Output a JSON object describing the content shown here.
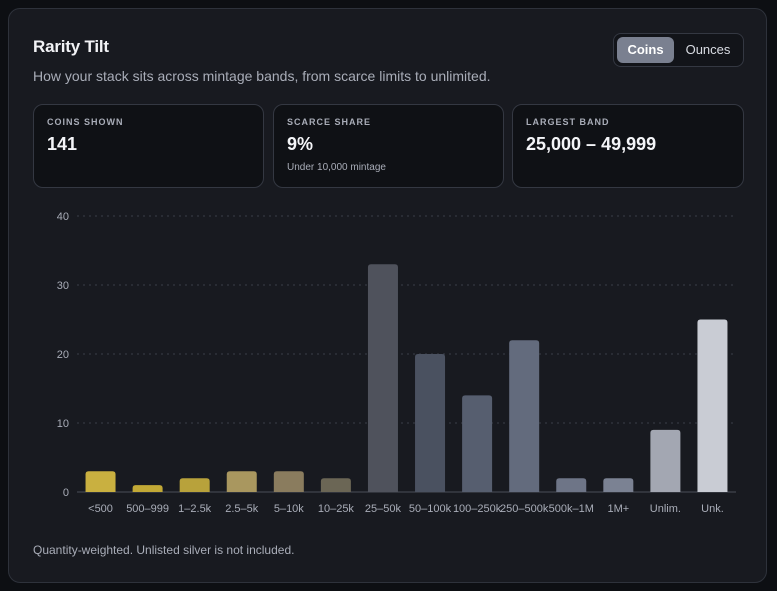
{
  "header": {
    "title": "Rarity Tilt",
    "subtitle": "How your stack sits across mintage bands, from scarce limits to unlimited."
  },
  "toggle": {
    "options": [
      "Coins",
      "Ounces"
    ],
    "selected": "Coins"
  },
  "stats": [
    {
      "label": "COINS SHOWN",
      "value": "141",
      "note": ""
    },
    {
      "label": "SCARCE SHARE",
      "value": "9%",
      "note": "Under 10,000 mintage"
    },
    {
      "label": "LARGEST BAND",
      "value": "25,000 – 49,999",
      "note": ""
    }
  ],
  "chart_data": {
    "type": "bar",
    "categories": [
      "<500",
      "500–999",
      "1–2.5k",
      "2.5–5k",
      "5–10k",
      "10–25k",
      "25–50k",
      "50–100k",
      "100–250k",
      "250–500k",
      "500k–1M",
      "1M+",
      "Unlim.",
      "Unk."
    ],
    "values": [
      3,
      1,
      2,
      3,
      3,
      2,
      33,
      20,
      14,
      22,
      2,
      2,
      9,
      25
    ],
    "colors": [
      "#c9b040",
      "#c2a936",
      "#b8a23b",
      "#a9975f",
      "#8a7c5e",
      "#6b6655",
      "#4f525c",
      "#4a5160",
      "#565e6f",
      "#636b7d",
      "#6e7587",
      "#7b8293",
      "#a3a7b2",
      "#c9ccd4"
    ],
    "ylim": [
      0,
      40
    ],
    "yticks": [
      0,
      10,
      20,
      30,
      40
    ],
    "grid": true,
    "xlabel": "",
    "ylabel": ""
  },
  "footer": {
    "note": "Quantity-weighted. Unlisted silver is not included."
  }
}
